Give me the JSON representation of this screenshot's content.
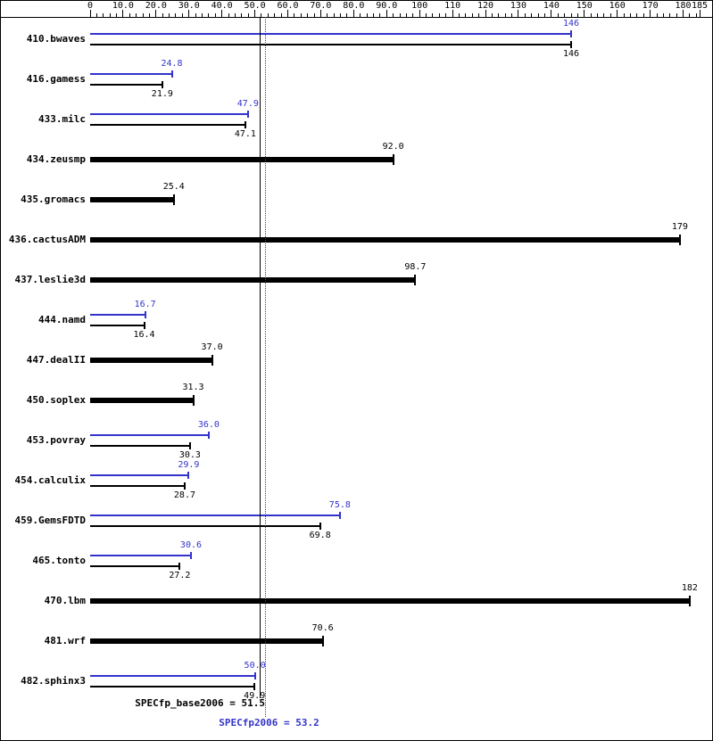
{
  "chart_data": {
    "type": "bar",
    "orientation": "horizontal",
    "title": "",
    "xlim": [
      0,
      185
    ],
    "grid": false,
    "colors": {
      "peak": "#3333cc",
      "base": "#000000",
      "background": "#ffffff"
    },
    "axis_ticks": [
      {
        "value": 0,
        "label": "0"
      },
      {
        "value": 10,
        "label": "10.0"
      },
      {
        "value": 20,
        "label": "20.0"
      },
      {
        "value": 30,
        "label": "30.0"
      },
      {
        "value": 40,
        "label": "40.0"
      },
      {
        "value": 50,
        "label": "50.0"
      },
      {
        "value": 60,
        "label": "60.0"
      },
      {
        "value": 70,
        "label": "70.0"
      },
      {
        "value": 80,
        "label": "80.0"
      },
      {
        "value": 90,
        "label": "90.0"
      },
      {
        "value": 100,
        "label": "100"
      },
      {
        "value": 110,
        "label": "110"
      },
      {
        "value": 120,
        "label": "120"
      },
      {
        "value": 130,
        "label": "130"
      },
      {
        "value": 140,
        "label": "140"
      },
      {
        "value": 150,
        "label": "150"
      },
      {
        "value": 160,
        "label": "160"
      },
      {
        "value": 170,
        "label": "170"
      },
      {
        "value": 180,
        "label": "180"
      },
      {
        "value": 185,
        "label": "185"
      }
    ],
    "benchmarks": [
      {
        "name": "410.bwaves",
        "peak": 146,
        "peak_label": "146",
        "base": 146,
        "base_label": "146"
      },
      {
        "name": "416.gamess",
        "peak": 24.8,
        "peak_label": "24.8",
        "base": 21.9,
        "base_label": "21.9"
      },
      {
        "name": "433.milc",
        "peak": 47.9,
        "peak_label": "47.9",
        "base": 47.1,
        "base_label": "47.1"
      },
      {
        "name": "434.zeusmp",
        "peak": null,
        "peak_label": "",
        "base": 92.0,
        "base_label": "92.0"
      },
      {
        "name": "435.gromacs",
        "peak": null,
        "peak_label": "",
        "base": 25.4,
        "base_label": "25.4"
      },
      {
        "name": "436.cactusADM",
        "peak": null,
        "peak_label": "",
        "base": 179,
        "base_label": "179"
      },
      {
        "name": "437.leslie3d",
        "peak": null,
        "peak_label": "",
        "base": 98.7,
        "base_label": "98.7"
      },
      {
        "name": "444.namd",
        "peak": 16.7,
        "peak_label": "16.7",
        "base": 16.4,
        "base_label": "16.4"
      },
      {
        "name": "447.dealII",
        "peak": null,
        "peak_label": "",
        "base": 37.0,
        "base_label": "37.0"
      },
      {
        "name": "450.soplex",
        "peak": null,
        "peak_label": "",
        "base": 31.3,
        "base_label": "31.3"
      },
      {
        "name": "453.povray",
        "peak": 36.0,
        "peak_label": "36.0",
        "base": 30.3,
        "base_label": "30.3"
      },
      {
        "name": "454.calculix",
        "peak": 29.9,
        "peak_label": "29.9",
        "base": 28.7,
        "base_label": "28.7"
      },
      {
        "name": "459.GemsFDTD",
        "peak": 75.8,
        "peak_label": "75.8",
        "base": 69.8,
        "base_label": "69.8"
      },
      {
        "name": "465.tonto",
        "peak": 30.6,
        "peak_label": "30.6",
        "base": 27.2,
        "base_label": "27.2"
      },
      {
        "name": "470.lbm",
        "peak": null,
        "peak_label": "",
        "base": 182,
        "base_label": "182"
      },
      {
        "name": "481.wrf",
        "peak": null,
        "peak_label": "",
        "base": 70.6,
        "base_label": "70.6"
      },
      {
        "name": "482.sphinx3",
        "peak": 50.0,
        "peak_label": "50.0",
        "base": 49.9,
        "base_label": "49.9"
      }
    ],
    "reference_lines": {
      "base": {
        "value": 51.5,
        "label": "SPECfp_base2006 = 51.5",
        "color": "#000000",
        "style": "solid"
      },
      "peak": {
        "value": 53.2,
        "label": "SPECfp2006 = 53.2",
        "color": "#3333cc",
        "style": "dotted"
      }
    }
  }
}
